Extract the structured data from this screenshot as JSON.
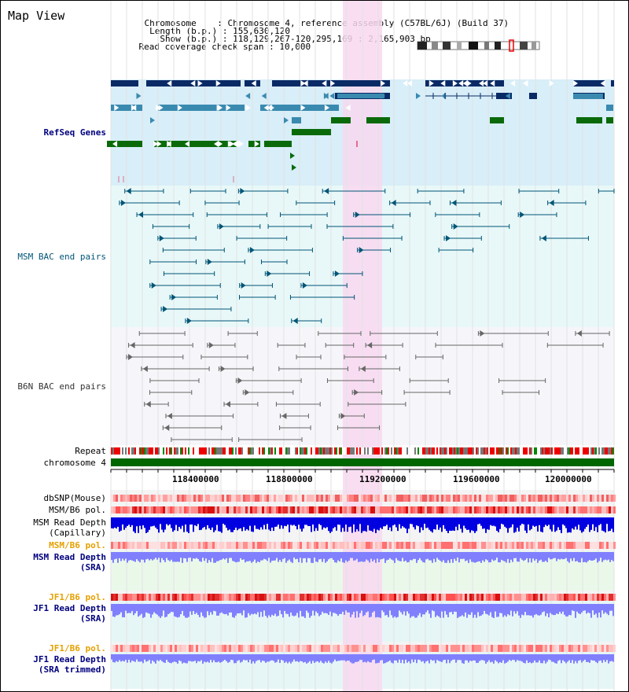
{
  "page": {
    "title": "Map View"
  },
  "header": {
    "lines": [
      {
        "key": "Chromosome   ",
        "value": "Chromosome 4, reference assembly (C57BL/6J) (Build 37)"
      },
      {
        "key": " Length (b.p.)",
        "value": "155,630,120"
      },
      {
        "key": "   Show (b.p.)",
        "value": "118,129,267-120,295,169 : 2,165,903 bp"
      },
      {
        "key": "Read coverage check span",
        "value": "10,000"
      }
    ]
  },
  "tracks": {
    "refseq": "RefSeq Genes",
    "msm_bac": "MSM BAC end pairs",
    "b6n_bac": "B6N BAC end pairs",
    "repeat": "Repeat",
    "chromosome": "chromosome 4",
    "dbsnp": "dbSNP(Mouse)",
    "msm_b6_pol_1": "MSM/B6 pol.",
    "msm_read_depth_cap": "MSM Read Depth",
    "msm_read_depth_cap_sub": "(Capillary)",
    "msm_b6_pol_2": "MSM/B6 pol.",
    "msm_read_depth_sra": "MSM Read Depth",
    "msm_read_depth_sra_sub": "(SRA)",
    "jf1_b6_pol_1": "JF1/B6 pol.",
    "jf1_read_depth_sra": "JF1 Read Depth",
    "jf1_read_depth_sra_sub": "(SRA)",
    "jf1_b6_pol_2": "JF1/B6 pol.",
    "jf1_read_depth_trim": "JF1 Read Depth",
    "jf1_read_depth_trim_sub": "(SRA trimmed)"
  },
  "axis": {
    "ticks": [
      "118400000",
      "118800000",
      "119200000",
      "119600000",
      "120000000"
    ]
  },
  "colors": {
    "refseq_bg": "#d8eef8",
    "msm_bg": "#e8f8f8",
    "highlight": "#f8d8f0",
    "refseq_dark": "#0a2a66",
    "refseq_mid": "#3a8ab0",
    "refseq_green": "#0a6a0a",
    "msm_line": "#005577",
    "b6n_line": "#666666",
    "chrom_green": "#006600",
    "depth_blue": "#0000e0",
    "depth_light": "#8080ff"
  }
}
